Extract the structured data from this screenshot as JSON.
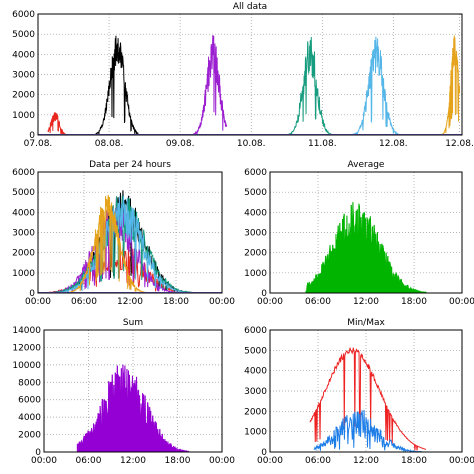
{
  "chart_data": [
    {
      "id": "all",
      "type": "line",
      "title": "All data",
      "xlabel": "",
      "ylabel": "",
      "x_ticks": [
        "07.08.",
        "08.08.",
        "09.08.",
        "10.08.",
        "11.08.",
        "12.08.",
        "12.08."
      ],
      "x_range": [
        0,
        6
      ],
      "ylim": [
        0,
        6000
      ],
      "y_ticks": [
        "0",
        "1000",
        "2000",
        "3000",
        "4000",
        "5000",
        "6000"
      ],
      "grid": true,
      "series": [
        {
          "color": "#e8271f",
          "start": 0.2,
          "end": 0.62,
          "center": 0.35,
          "sigma": 0.08,
          "peak": 1200,
          "noise": 0.45,
          "seed": 3
        },
        {
          "color": "#000000",
          "start": 1.18,
          "end": 2.05,
          "center": 1.62,
          "sigma": 0.15,
          "peak": 5150,
          "noise": 0.35,
          "seed": 11
        },
        {
          "color": "#9b1fd0",
          "start": 3.15,
          "end": 3.85,
          "center": 3.57,
          "sigma": 0.13,
          "peak": 5000,
          "noise": 0.45,
          "seed": 23
        },
        {
          "color": "#169c7e",
          "start": 5.05,
          "end": 5.98,
          "center": 5.55,
          "sigma": 0.14,
          "peak": 5200,
          "noise": 0.45,
          "seed": 41
        },
        {
          "color": "#55b6e8",
          "start": 6.35,
          "end": 7.35,
          "center": 6.9,
          "sigma": 0.15,
          "peak": 5100,
          "noise": 0.4,
          "seed": 57
        },
        {
          "color": "#e4a31a",
          "start": 8.1,
          "end": 8.6,
          "center": 8.5,
          "sigma": 0.08,
          "peak": 5000,
          "noise": 0.3,
          "seed": 67
        }
      ]
    },
    {
      "id": "per24",
      "type": "line",
      "title": "Data per 24 hours",
      "x_ticks": [
        "00:00",
        "06:00",
        "12:00",
        "18:00",
        "00:00"
      ],
      "x_range": [
        0,
        24
      ],
      "ylim": [
        0,
        6000
      ],
      "y_ticks": [
        "0",
        "1000",
        "2000",
        "3000",
        "4000",
        "5000",
        "6000"
      ],
      "grid": true,
      "series": [
        {
          "color": "#e8271f",
          "center": 10.5,
          "sigma": 3.2,
          "peak": 2600,
          "noise": 0.6,
          "seed": 5
        },
        {
          "color": "#000000",
          "center": 11.0,
          "sigma": 2.8,
          "peak": 5100,
          "noise": 0.35,
          "seed": 13
        },
        {
          "color": "#9b1fd0",
          "center": 10.0,
          "sigma": 2.6,
          "peak": 4800,
          "noise": 0.5,
          "seed": 19
        },
        {
          "color": "#169c7e",
          "center": 11.0,
          "sigma": 2.9,
          "peak": 5000,
          "noise": 0.45,
          "seed": 29
        },
        {
          "color": "#55b6e8",
          "center": 11.0,
          "sigma": 2.7,
          "peak": 4900,
          "noise": 0.45,
          "seed": 37
        },
        {
          "color": "#e4a31a",
          "center": 9.0,
          "sigma": 1.6,
          "peak": 4900,
          "noise": 0.3,
          "seed": 43
        }
      ]
    },
    {
      "id": "avg",
      "type": "area",
      "title": "Average",
      "x_ticks": [
        "00:00",
        "06:00",
        "12:00",
        "18:00",
        "00:00"
      ],
      "x_range": [
        0,
        24
      ],
      "ylim": [
        0,
        6000
      ],
      "y_ticks": [
        "0",
        "1000",
        "2000",
        "3000",
        "4000",
        "5000",
        "6000"
      ],
      "grid": true,
      "series": [
        {
          "color": "#00b400",
          "center": 10.8,
          "sigma": 2.9,
          "peak": 4600,
          "noise": 0.45,
          "seed": 71,
          "start": 4.5,
          "end": 19.5
        }
      ]
    },
    {
      "id": "sum",
      "type": "area",
      "title": "Sum",
      "x_ticks": [
        "00:00",
        "06:00",
        "12:00",
        "18:00",
        "00:00"
      ],
      "x_range": [
        0,
        24
      ],
      "ylim": [
        0,
        14000
      ],
      "y_ticks": [
        "0",
        "2000",
        "4000",
        "6000",
        "8000",
        "10000",
        "12000",
        "14000"
      ],
      "grid": true,
      "series": [
        {
          "color": "#9400d3",
          "center": 10.8,
          "sigma": 2.9,
          "peak": 10500,
          "noise": 0.5,
          "seed": 83,
          "start": 4.5,
          "end": 19.5
        }
      ]
    },
    {
      "id": "minmax",
      "type": "line",
      "title": "Min/Max",
      "x_ticks": [
        "00:00",
        "06:00",
        "12:00",
        "18:00",
        "00:00"
      ],
      "x_range": [
        0,
        24
      ],
      "ylim": [
        0,
        6000
      ],
      "y_ticks": [
        "0",
        "1000",
        "2000",
        "3000",
        "4000",
        "5000",
        "6000"
      ],
      "grid": true,
      "series": [
        {
          "color": "#ee2222",
          "center": 10.3,
          "sigma": 3.4,
          "peak": 5150,
          "noise": 0.06,
          "seed": 91,
          "start": 5.0,
          "end": 19.5
        },
        {
          "color": "#1e7ee8",
          "center": 11.0,
          "sigma": 2.6,
          "peak": 2200,
          "noise": 0.7,
          "seed": 97,
          "start": 5.5,
          "end": 19.0
        }
      ]
    }
  ]
}
